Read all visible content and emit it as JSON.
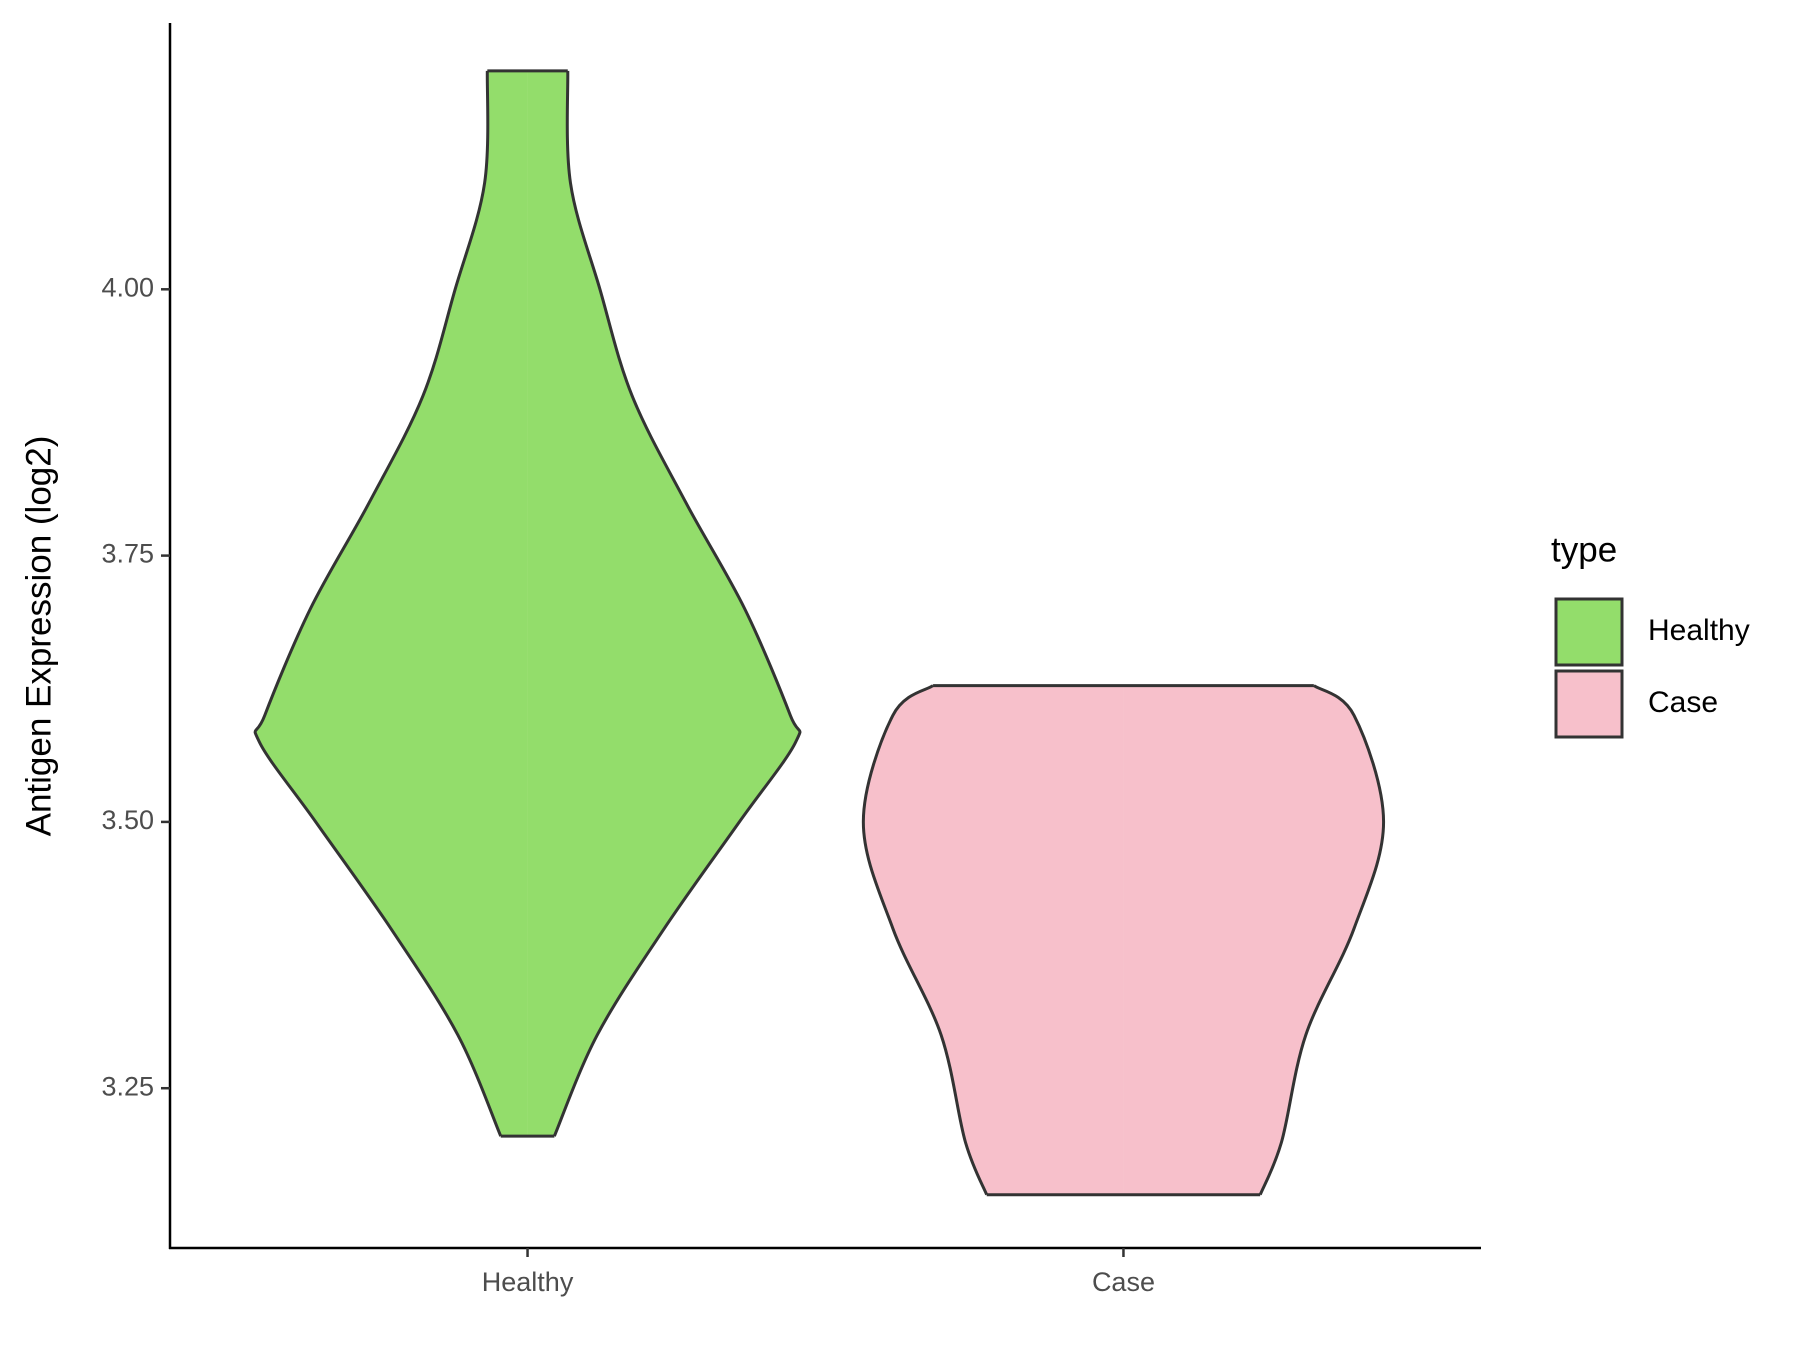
{
  "chart_data": {
    "type": "violin",
    "y_label": "Antigen Expression (log2)",
    "categories": [
      "Healthy",
      "Case"
    ],
    "series": [
      {
        "name": "Healthy",
        "color": "#93dd6b",
        "y": [
          4.205,
          4.1,
          4.0,
          3.9,
          3.8,
          3.7,
          3.6,
          3.575,
          3.5,
          3.4,
          3.3,
          3.205
        ],
        "width": [
          0.15,
          0.16,
          0.27,
          0.39,
          0.59,
          0.81,
          0.98,
          1.0,
          0.79,
          0.51,
          0.26,
          0.1
        ]
      },
      {
        "name": "Case",
        "color": "#f7c0cb",
        "y": [
          3.628,
          3.6,
          3.5,
          3.4,
          3.3,
          3.2,
          3.15
        ],
        "width": [
          0.71,
          0.86,
          0.97,
          0.86,
          0.68,
          0.59,
          0.51
        ]
      }
    ],
    "ylim": [
      3.1,
      4.25
    ],
    "yticks": [
      {
        "value": 3.25,
        "label": "3.25"
      },
      {
        "value": 3.5,
        "label": "3.50"
      },
      {
        "value": 3.75,
        "label": "3.75"
      },
      {
        "value": 4.0,
        "label": "4.00"
      }
    ],
    "legend_title": "type",
    "legend": "right"
  }
}
